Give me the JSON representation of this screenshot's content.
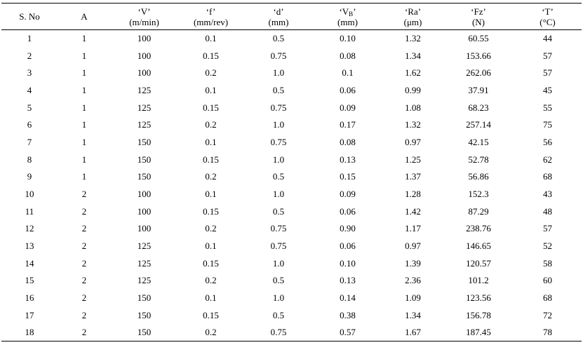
{
  "header": {
    "sno": "S. No",
    "a": "A",
    "v": [
      "‘V’",
      "(m/min)"
    ],
    "f": [
      "‘f’",
      "(mm/rev)"
    ],
    "d": [
      "‘d’",
      "(mm)"
    ],
    "vb": [
      "‘V",
      "B",
      "’",
      "(mm)"
    ],
    "ra": [
      "‘Ra’",
      "(μm)"
    ],
    "fz": [
      "‘Fz’",
      "(N)"
    ],
    "t": [
      "‘T’",
      "(°C)"
    ]
  },
  "rows": [
    [
      "1",
      "1",
      "100",
      "0.1",
      "0.5",
      "0.10",
      "1.32",
      "60.55",
      "44"
    ],
    [
      "2",
      "1",
      "100",
      "0.15",
      "0.75",
      "0.08",
      "1.34",
      "153.66",
      "57"
    ],
    [
      "3",
      "1",
      "100",
      "0.2",
      "1.0",
      "0.1",
      "1.62",
      "262.06",
      "57"
    ],
    [
      "4",
      "1",
      "125",
      "0.1",
      "0.5",
      "0.06",
      "0.99",
      "37.91",
      "45"
    ],
    [
      "5",
      "1",
      "125",
      "0.15",
      "0.75",
      "0.09",
      "1.08",
      "68.23",
      "55"
    ],
    [
      "6",
      "1",
      "125",
      "0.2",
      "1.0",
      "0.17",
      "1.32",
      "257.14",
      "75"
    ],
    [
      "7",
      "1",
      "150",
      "0.1",
      "0.75",
      "0.08",
      "0.97",
      "42.15",
      "56"
    ],
    [
      "8",
      "1",
      "150",
      "0.15",
      "1.0",
      "0.13",
      "1.25",
      "52.78",
      "62"
    ],
    [
      "9",
      "1",
      "150",
      "0.2",
      "0.5",
      "0.15",
      "1.37",
      "56.86",
      "68"
    ],
    [
      "10",
      "2",
      "100",
      "0.1",
      "1.0",
      "0.09",
      "1.28",
      "152.3",
      "43"
    ],
    [
      "11",
      "2",
      "100",
      "0.15",
      "0.5",
      "0.06",
      "1.42",
      "87.29",
      "48"
    ],
    [
      "12",
      "2",
      "100",
      "0.2",
      "0.75",
      "0.90",
      "1.17",
      "238.76",
      "57"
    ],
    [
      "13",
      "2",
      "125",
      "0.1",
      "0.75",
      "0.06",
      "0.97",
      "146.65",
      "52"
    ],
    [
      "14",
      "2",
      "125",
      "0.15",
      "1.0",
      "0.10",
      "1.39",
      "120.57",
      "58"
    ],
    [
      "15",
      "2",
      "125",
      "0.2",
      "0.5",
      "0.13",
      "2.36",
      "101.2",
      "60"
    ],
    [
      "16",
      "2",
      "150",
      "0.1",
      "1.0",
      "0.14",
      "1.09",
      "123.56",
      "68"
    ],
    [
      "17",
      "2",
      "150",
      "0.15",
      "0.5",
      "0.38",
      "1.34",
      "156.78",
      "72"
    ],
    [
      "18",
      "2",
      "150",
      "0.2",
      "0.75",
      "0.57",
      "1.67",
      "187.45",
      "78"
    ]
  ]
}
